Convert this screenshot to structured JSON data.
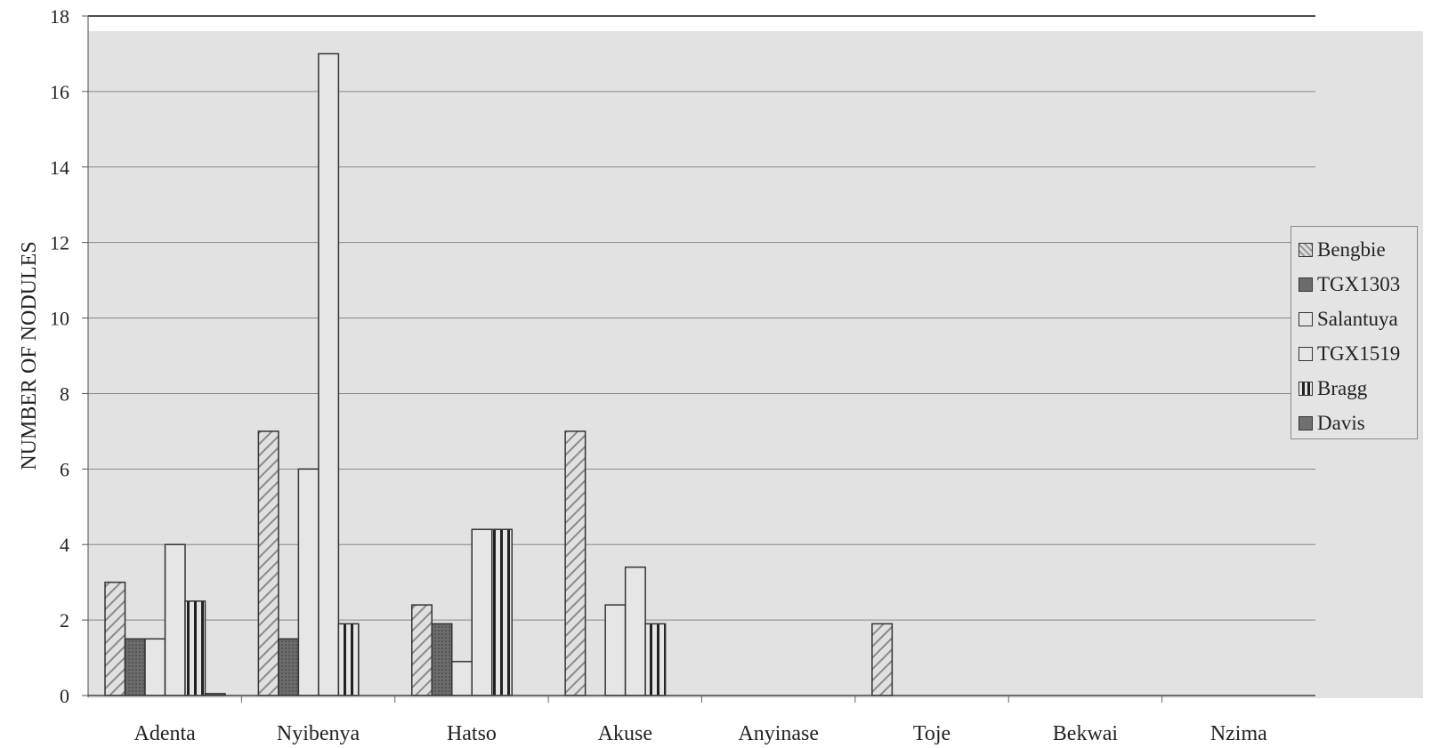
{
  "chart_data": {
    "type": "bar",
    "ylabel": "NUMBER OF NODULES",
    "xlabel": "",
    "ylim": [
      0,
      18
    ],
    "yticks": [
      "0",
      "2",
      "4",
      "6",
      "8",
      "10",
      "12",
      "14",
      "16",
      "18"
    ],
    "categories": [
      "Adenta",
      "Nyibenya",
      "Hatso",
      "Akuse",
      "Anyinase",
      "Toje",
      "Bekwai",
      "Nzima"
    ],
    "legend_position": "right",
    "grid": true,
    "series": [
      {
        "name": "Bengbie",
        "values": [
          3,
          7,
          2.4,
          7,
          0,
          1.9,
          0,
          0
        ]
      },
      {
        "name": "TGX1303",
        "values": [
          1.5,
          1.5,
          1.9,
          0,
          0,
          0,
          0,
          0
        ]
      },
      {
        "name": "Salantuya",
        "values": [
          1.5,
          6,
          0.9,
          2.4,
          0,
          0,
          0,
          0
        ]
      },
      {
        "name": "TGX1519",
        "values": [
          4,
          17,
          4.4,
          3.4,
          0,
          0,
          0,
          0
        ]
      },
      {
        "name": "Bragg",
        "values": [
          2.5,
          1.9,
          4.4,
          1.9,
          0,
          0,
          0,
          0
        ]
      },
      {
        "name": "Davis",
        "values": [
          0.05,
          0,
          0,
          0,
          0,
          0,
          0,
          0
        ]
      }
    ],
    "colors": {
      "plot_background": "#e2e2e2",
      "gridline": "#888888",
      "bar_fill": "#e6e6e6",
      "bar_stroke": "#333333",
      "dark_fill": "#707070"
    }
  }
}
